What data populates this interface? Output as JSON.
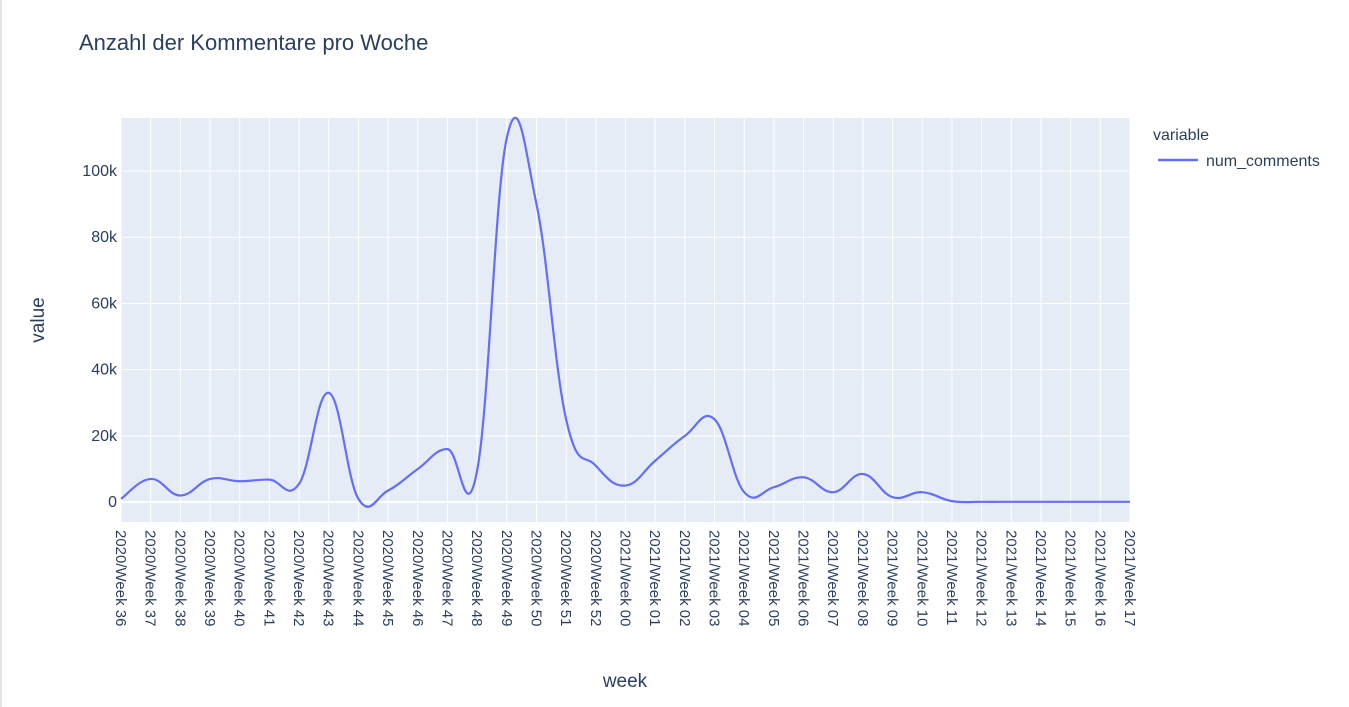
{
  "chart_data": {
    "type": "line",
    "title": "Anzahl der Kommentare pro Woche",
    "xlabel": "week",
    "ylabel": "value",
    "legend_title": "variable",
    "legend_position": "top-right",
    "grid": true,
    "line_shape": "spline",
    "ylim": [
      -6000,
      116000
    ],
    "yticks": [
      0,
      20000,
      40000,
      60000,
      80000,
      100000
    ],
    "ytick_labels": [
      "0",
      "20k",
      "40k",
      "60k",
      "80k",
      "100k"
    ],
    "colors": {
      "plot_bg": "#e5ecf6",
      "grid": "#ffffff",
      "text": "#2a3f5f",
      "line": "#636efa"
    },
    "x": [
      "2020/Week 36",
      "2020/Week 37",
      "2020/Week 38",
      "2020/Week 39",
      "2020/Week 40",
      "2020/Week 41",
      "2020/Week 42",
      "2020/Week 43",
      "2020/Week 44",
      "2020/Week 45",
      "2020/Week 46",
      "2020/Week 47",
      "2020/Week 48",
      "2020/Week 49",
      "2020/Week 50",
      "2020/Week 51",
      "2020/Week 52",
      "2021/Week 00",
      "2021/Week 01",
      "2021/Week 02",
      "2021/Week 03",
      "2021/Week 04",
      "2021/Week 05",
      "2021/Week 06",
      "2021/Week 07",
      "2021/Week 08",
      "2021/Week 09",
      "2021/Week 10",
      "2021/Week 11",
      "2021/Week 12",
      "2021/Week 13",
      "2021/Week 14",
      "2021/Week 15",
      "2021/Week 16",
      "2021/Week 17"
    ],
    "series": [
      {
        "name": "num_comments",
        "values": [
          1000,
          7000,
          2000,
          7000,
          6300,
          6800,
          5500,
          33000,
          1000,
          3500,
          10000,
          16000,
          9500,
          110000,
          90000,
          25000,
          11000,
          5000,
          12500,
          20000,
          25000,
          3000,
          4500,
          7500,
          3000,
          8500,
          1500,
          3000,
          300,
          100,
          100,
          100,
          100,
          100,
          100
        ]
      }
    ]
  }
}
